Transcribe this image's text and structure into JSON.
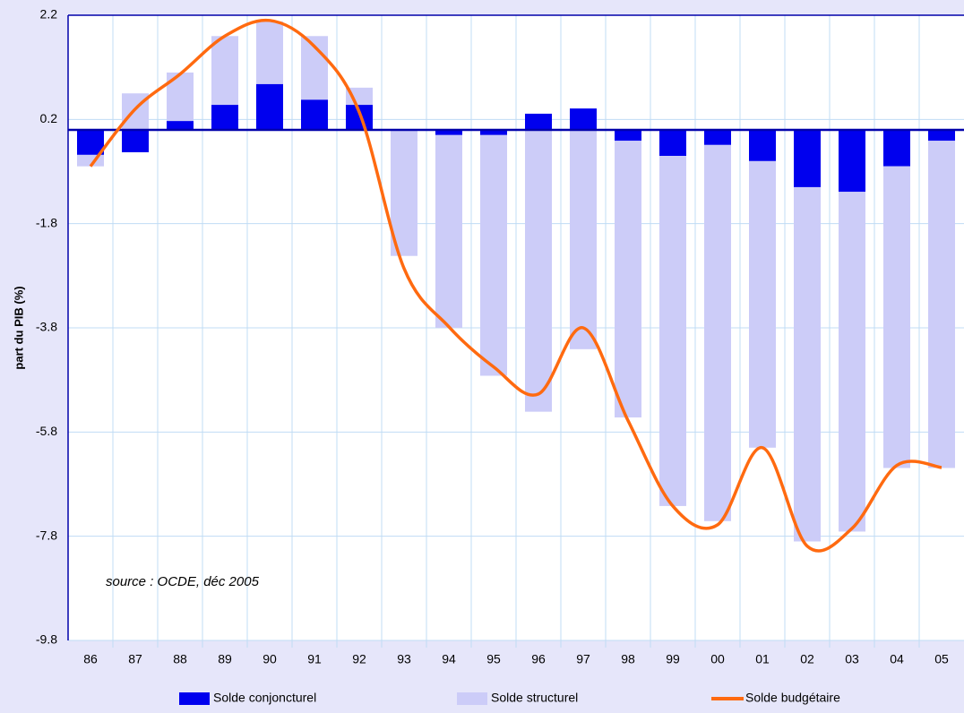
{
  "chart_data": {
    "type": "bar_line",
    "y_axis_label": "part du PIB (%)",
    "annotation": "source : OCDE, déc 2005",
    "categories": [
      "86",
      "87",
      "88",
      "89",
      "90",
      "91",
      "92",
      "93",
      "94",
      "95",
      "96",
      "97",
      "98",
      "99",
      "00",
      "01",
      "02",
      "03",
      "04",
      "05"
    ],
    "series": [
      {
        "name": "Solde conjoncturel",
        "type": "bar",
        "color": "#0000ee",
        "values": [
          -0.48,
          -0.43,
          0.17,
          0.48,
          0.88,
          0.58,
          0.48,
          0,
          -0.1,
          -0.1,
          0.31,
          0.41,
          -0.21,
          -0.5,
          -0.29,
          -0.6,
          -1.1,
          -1.19,
          -0.7,
          -0.21
        ]
      },
      {
        "name": "Solde structurel",
        "type": "bar",
        "color": "#ccccf8",
        "values": [
          -0.22,
          0.7,
          0.93,
          1.32,
          1.2,
          1.22,
          0.33,
          -2.42,
          -3.7,
          -4.62,
          -5.41,
          -4.21,
          -5.31,
          -6.72,
          -7.22,
          -5.5,
          -6.8,
          -6.52,
          -5.79,
          -6.28
        ]
      },
      {
        "name": "Solde budgétaire",
        "type": "line",
        "color": "#ff6a10",
        "values": [
          -0.7,
          0.4,
          1.07,
          1.8,
          2.1,
          1.6,
          0.34,
          -2.66,
          -3.78,
          -4.55,
          -5.07,
          -3.8,
          -5.58,
          -7.22,
          -7.58,
          -6.1,
          -7.99,
          -7.65,
          -6.44,
          -6.48
        ]
      }
    ],
    "ylim": [
      -9.8,
      2.2
    ],
    "yticks": [
      2.2,
      0.2,
      -1.8,
      -3.8,
      -5.8,
      -7.8,
      -9.8
    ],
    "grid": true,
    "legend": "bottom"
  }
}
